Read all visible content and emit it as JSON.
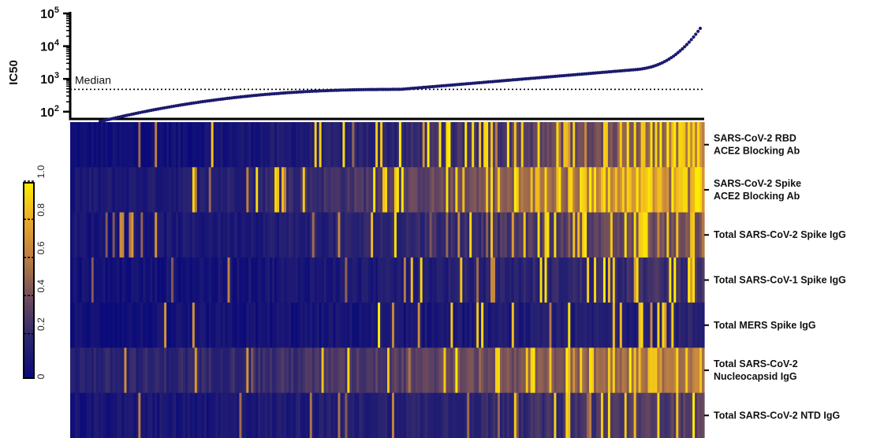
{
  "chart_data": [
    {
      "type": "scatter",
      "ylabel": "IC50",
      "yscale": "log",
      "ylim": [
        60,
        100000
      ],
      "ytick_labels": [
        {
          "base": "10",
          "exp": "2",
          "value": 100
        },
        {
          "base": "10",
          "exp": "3",
          "value": 1000
        },
        {
          "base": "10",
          "exp": "4",
          "value": 10000
        },
        {
          "base": "10",
          "exp": "5",
          "value": 100000
        }
      ],
      "n_points": 270,
      "y_min": 50,
      "y_max": 35000,
      "sorted_ascending": true,
      "point_color": "#1a1a6e",
      "median": {
        "label": "Median",
        "value": 480
      }
    },
    {
      "type": "heatmap",
      "rows": [
        {
          "label_lines": [
            "SARS-CoV-2 RBD",
            "ACE2 Blocking  Ab"
          ],
          "intensity_start": 0.02,
          "intensity_end": 0.55,
          "hot_fraction": 0.22
        },
        {
          "label_lines": [
            "SARS-CoV-2 Spike",
            "ACE2 Blocking  Ab"
          ],
          "intensity_start": 0.1,
          "intensity_end": 0.78,
          "hot_fraction": 0.3
        },
        {
          "label_lines": [
            "Total SARS-CoV-2 Spike IgG"
          ],
          "intensity_start": 0.08,
          "intensity_end": 0.45,
          "hot_fraction": 0.12
        },
        {
          "label_lines": [
            "Total SARS-CoV-1 Spike IgG"
          ],
          "intensity_start": 0.05,
          "intensity_end": 0.28,
          "hot_fraction": 0.06
        },
        {
          "label_lines": [
            "Total MERS Spike IgG"
          ],
          "intensity_start": 0.04,
          "intensity_end": 0.18,
          "hot_fraction": 0.05
        },
        {
          "label_lines": [
            "Total SARS-CoV-2",
            "Nucleocapsid IgG"
          ],
          "intensity_start": 0.18,
          "intensity_end": 0.62,
          "hot_fraction": 0.22
        },
        {
          "label_lines": [
            "Total  SARS-CoV-2 NTD IgG"
          ],
          "intensity_start": 0.08,
          "intensity_end": 0.35,
          "hot_fraction": 0.08
        }
      ],
      "colorbar": {
        "ticks": [
          "0",
          "0.2",
          "0.4",
          "0.6",
          "0.8",
          "1.0"
        ],
        "range": [
          0,
          1
        ],
        "colors": [
          "#0a0a7a",
          "#2a2470",
          "#6b4a5e",
          "#b67a45",
          "#e9a72c",
          "#ffee00"
        ]
      }
    }
  ]
}
